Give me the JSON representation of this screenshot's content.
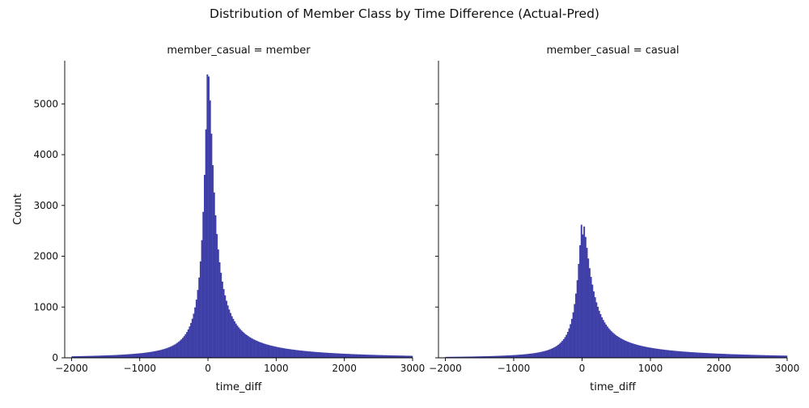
{
  "figure": {
    "suptitle": "Distribution of Member Class by Time Difference (Actual-Pred)"
  },
  "chart_data": [
    {
      "type": "bar",
      "subtype": "histogram",
      "title": "member_casual = member",
      "xlabel": "time_diff",
      "ylabel": "Count",
      "xlim": [
        -2100,
        3000
      ],
      "ylim": [
        0,
        5850
      ],
      "xticks": [
        -2000,
        -1000,
        0,
        1000,
        2000,
        3000
      ],
      "xtick_labels": [
        "−2000",
        "−1000",
        "0",
        "1000",
        "2000",
        "3000"
      ],
      "yticks": [
        0,
        1000,
        2000,
        3000,
        4000,
        5000
      ],
      "ytick_labels": [
        "0",
        "1000",
        "2000",
        "3000",
        "4000",
        "5000"
      ],
      "bin_width": 20,
      "peak_bin_start": -20,
      "peak_values": [
        5580,
        5540
      ],
      "kde_profile": {
        "left_scale": 160,
        "right_scale": 230,
        "tail_weight": 0.03,
        "tail_scale": 1200
      },
      "color": "#3F3FA8"
    },
    {
      "type": "bar",
      "subtype": "histogram",
      "title": "member_casual = casual",
      "xlabel": "time_diff",
      "ylabel": "",
      "xlim": [
        -2100,
        3000
      ],
      "ylim": [
        0,
        5850
      ],
      "xticks": [
        -2000,
        -1000,
        0,
        1000,
        2000,
        3000
      ],
      "xtick_labels": [
        "−2000",
        "−1000",
        "0",
        "1000",
        "2000",
        "3000"
      ],
      "yticks": [
        0,
        1000,
        2000,
        3000,
        4000,
        5000
      ],
      "ytick_labels": [
        "",
        "",
        "",
        "",
        "",
        ""
      ],
      "bin_width": 20,
      "peak_bin_start": -20,
      "peak_values": [
        2620,
        2430
      ],
      "kde_profile": {
        "left_scale": 190,
        "right_scale": 330,
        "tail_weight": 0.06,
        "tail_scale": 1500
      },
      "color": "#3F3FA8"
    }
  ]
}
